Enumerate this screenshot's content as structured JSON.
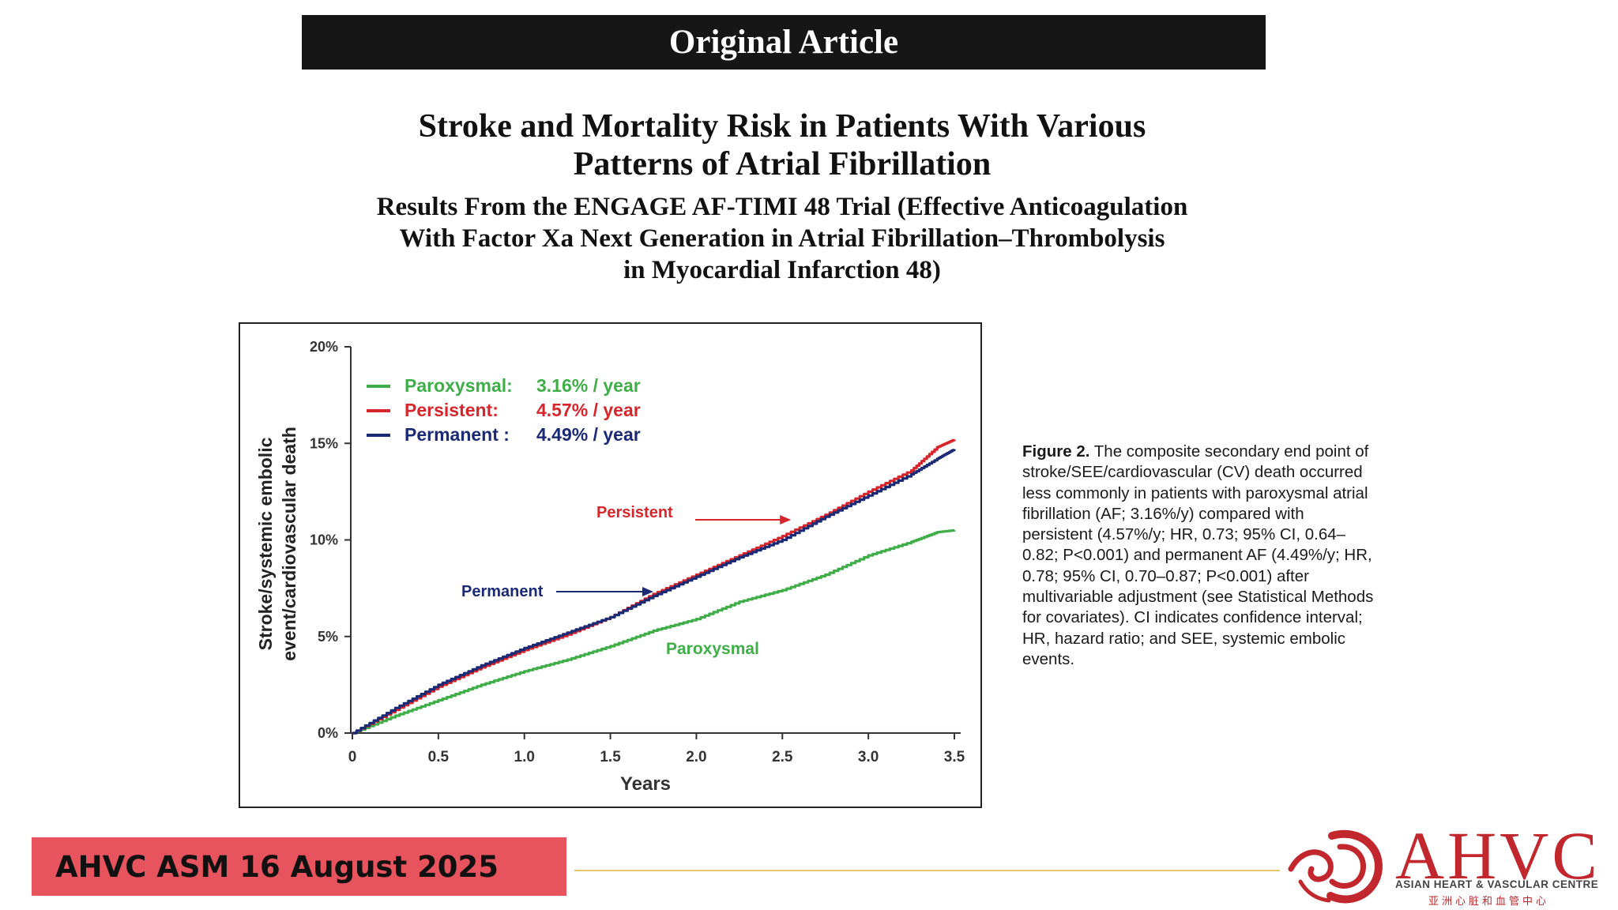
{
  "banner": "Original Article",
  "title": {
    "line1": "Stroke and Mortality Risk in Patients With Various",
    "line2": "Patterns of Atrial Fibrillation"
  },
  "subtitle": {
    "line1": "Results From the ENGAGE AF-TIMI 48 Trial (Effective Anticoagulation",
    "line2": "With Factor Xa Next Generation in Atrial Fibrillation–Thrombolysis",
    "line3": "in Myocardial Infarction 48)"
  },
  "caption": {
    "figure_label": "Figure 2.",
    "text": "The composite secondary end point of stroke/SEE/cardiovascular (CV) death occurred less commonly in patients with paroxysmal atrial fibrillation (AF; 3.16%/y) compared with persistent (4.57%/y; HR, 0.73; 95% CI, 0.64–0.82; P<0.001) and permanent AF (4.49%/y; HR, 0.78; 95% CI, 0.70–0.87; P<0.001) after multivariable adjustment (see Statistical Methods for covariates). CI indicates confidence interval; HR, hazard ratio; and SEE, systemic embolic events."
  },
  "footer": {
    "event": "AHVC ASM 16 August 2025"
  },
  "logo": {
    "name": "AHVC",
    "subtitle": "ASIAN HEART & VASCULAR CENTRE",
    "chinese": "亚洲心脏和血管中心"
  },
  "colors": {
    "paroxysmal": "#3fae49",
    "persistent": "#d7262b",
    "permanent": "#1b2a74",
    "badge": "#e8545e",
    "logo": "#c1272d"
  },
  "chart_data": {
    "type": "line",
    "title": "",
    "xlabel": "Years",
    "ylabel_line1": "Stroke/systemic embolic",
    "ylabel_line2": "event/cardiovascular death",
    "xlim": [
      0,
      3.5
    ],
    "ylim": [
      0,
      20
    ],
    "x_ticks": [
      0,
      0.5,
      1.0,
      1.5,
      2.0,
      2.5,
      3.0,
      3.5
    ],
    "x_tick_labels": [
      "0",
      "0.5",
      "1.0",
      "1.5",
      "2.0",
      "2.5",
      "3.0",
      "3.5"
    ],
    "y_ticks": [
      0,
      5,
      10,
      15,
      20
    ],
    "y_tick_labels": [
      "0%",
      "5%",
      "10%",
      "15%",
      "20%"
    ],
    "legend": [
      {
        "name": "Paroxysmal:",
        "rate": "3.16% / year",
        "color": "#3fae49"
      },
      {
        "name": "Persistent:",
        "rate": "4.57% / year",
        "color": "#d7262b"
      },
      {
        "name": "Permanent :",
        "rate": "4.49% / year",
        "color": "#1b2a74"
      }
    ],
    "series": [
      {
        "name": "Paroxysmal",
        "color": "#3fae49",
        "x": [
          0,
          0.25,
          0.5,
          0.75,
          1.0,
          1.25,
          1.5,
          1.75,
          2.0,
          2.25,
          2.5,
          2.75,
          3.0,
          3.25,
          3.4,
          3.5
        ],
        "y": [
          0,
          0.9,
          1.7,
          2.5,
          3.2,
          3.8,
          4.5,
          5.3,
          5.9,
          6.8,
          7.4,
          8.2,
          9.2,
          9.9,
          10.4,
          10.5
        ]
      },
      {
        "name": "Persistent",
        "color": "#d7262b",
        "x": [
          0,
          0.25,
          0.5,
          0.75,
          1.0,
          1.25,
          1.5,
          1.75,
          2.0,
          2.25,
          2.5,
          2.75,
          3.0,
          3.25,
          3.4,
          3.5
        ],
        "y": [
          0,
          1.2,
          2.4,
          3.4,
          4.3,
          5.1,
          6.0,
          7.2,
          8.2,
          9.2,
          10.2,
          11.3,
          12.5,
          13.6,
          14.8,
          15.2
        ]
      },
      {
        "name": "Permanent",
        "color": "#1b2a74",
        "x": [
          0,
          0.25,
          0.5,
          0.75,
          1.0,
          1.25,
          1.5,
          1.75,
          2.0,
          2.25,
          2.5,
          2.75,
          3.0,
          3.25,
          3.4,
          3.5
        ],
        "y": [
          0,
          1.3,
          2.5,
          3.5,
          4.4,
          5.2,
          6.0,
          7.1,
          8.1,
          9.1,
          10.0,
          11.2,
          12.3,
          13.4,
          14.2,
          14.7
        ]
      }
    ],
    "annotations": [
      {
        "text": "Persistent",
        "color": "#d7262b",
        "arrow_to": {
          "x": 2.55,
          "y": 10.9
        }
      },
      {
        "text": "Permanent",
        "color": "#1b2a74",
        "arrow_to": {
          "x": 1.75,
          "y": 7.4
        }
      },
      {
        "text": "Paroxysmal",
        "color": "#3fae49"
      }
    ]
  }
}
